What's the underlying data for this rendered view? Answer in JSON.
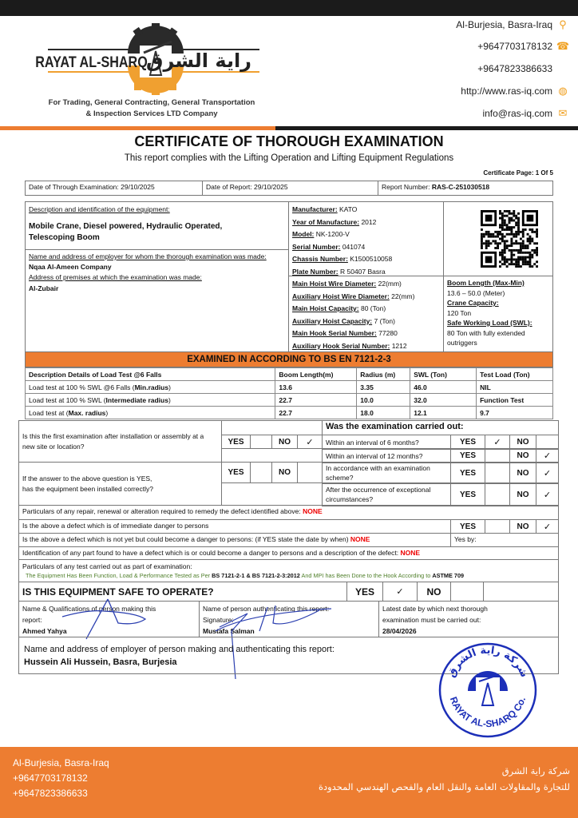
{
  "header": {
    "logo_text": "RAYAT AL-SHARQ",
    "logo_arabic": "راية الشرق",
    "tagline_1": "For Trading, General Contracting, General Transportation",
    "tagline_2": "& Inspection Services LTD Company",
    "contacts": [
      {
        "text": "Al-Burjesia, Basra-Iraq",
        "icon": "location-pin-icon"
      },
      {
        "text": "+9647703178132",
        "icon": "phone-icon"
      },
      {
        "text": "+9647823386633",
        "icon": ""
      },
      {
        "text": "http://www.ras-iq.com",
        "icon": "globe-icon"
      },
      {
        "text": "info@ras-iq.com",
        "icon": "envelope-icon"
      }
    ],
    "accent_color": "#ED7D31"
  },
  "title": "CERTIFICATE OF THOROUGH EXAMINATION",
  "subtitle": "This report complies with the Lifting Operation and Lifting Equipment Regulations",
  "page_label": "Certificate Page: 1 Of 5",
  "info_row": {
    "exam_date": "Date of Through Examination: 29/10/2025",
    "report_date": "Date of Report: 29/10/2025",
    "report_number_label": "Report Number: ",
    "report_number": "RAS-C-251030518"
  },
  "equipment": {
    "desc_label": "Description and identification of the equipment:",
    "desc_value_1": "Mobile Crane, Diesel powered, Hydraulic Operated,",
    "desc_value_2": "Telescoping Boom",
    "employer_label": "Name and address of employer for whom the thorough examination was made:",
    "employer_value": "Nqaa Al-Ameen Company",
    "premises_label": "Address of premises at which the examination was made:",
    "premises_value": "Al-Zubair",
    "specs": [
      {
        "label": "Manufacturer:",
        "value": " KATO"
      },
      {
        "label": "Year of Manufacture:",
        "value": " 2012"
      },
      {
        "label": "Model:",
        "value": " NK-1200-V"
      },
      {
        "label": "Serial Number:",
        "value": " 041074"
      },
      {
        "label": "Chassis Number:",
        "value": " K1500510058"
      },
      {
        "label": "Plate Number:",
        "value": " R 50407 Basra"
      }
    ],
    "hoist": [
      {
        "label": "Main Hoist Wire Diameter:",
        "value": " 22(mm)"
      },
      {
        "label": "Auxiliary Hoist Wire Diameter:",
        "value": " 22(mm)"
      },
      {
        "label": "Main Hoist Capacity:",
        "value": " 80 (Ton)"
      },
      {
        "label": "Auxiliary Hoist Capacity:",
        "value": " 7 (Ton)"
      },
      {
        "label": "Main Hook Serial Number:",
        "value": " 77280"
      },
      {
        "label": "Auxiliary Hook Serial Number:",
        "value": " 1212"
      }
    ],
    "boom_label": "Boom Length (Max-Min)",
    "boom_value": "13.6 – 50.0 (Meter)",
    "crane_cap_label": "Crane Capacity:",
    "crane_cap_value": "120 Ton",
    "swl_label": "Safe Working Load (SWL):",
    "swl_value": "80 Ton with fully extended outriggers"
  },
  "standard_banner": "EXAMINED IN ACCORDING TO BS EN 7121-2-3",
  "load_test": {
    "headers": [
      "Description Details of Load Test @6 Falls",
      "Boom Length(m)",
      "Radius (m)",
      "SWL (Ton)",
      "Test Load (Ton)"
    ],
    "rows": [
      {
        "desc": "Load test at 100 % SWL @6 Falls (",
        "desc_bold": "Min.radius",
        "boom": "13.6",
        "radius": "3.35",
        "swl": "46.0",
        "test": "NIL"
      },
      {
        "desc": "Load test at 100 % SWL (",
        "desc_bold": "Intermediate radius",
        "boom": "22.7",
        "radius": "10.0",
        "swl": "32.0",
        "test": "Function Test"
      },
      {
        "desc": "Load test at (",
        "desc_bold": "Max. radius",
        "boom": "22.7",
        "radius": "18.0",
        "swl": "12.1",
        "test": "9.7"
      }
    ]
  },
  "questions": {
    "yes": "YES",
    "no": "NO",
    "check": "✓",
    "q1": "Is this the first examination after installation or assembly at a new site or location?",
    "q2a": "If the answer to the above question is YES,",
    "q2b": "has the equipment been installed correctly?",
    "carried_out_label": "Was the examination carried out:",
    "carried_out": [
      {
        "text": "Within an interval of 6 months?",
        "answer": "YES"
      },
      {
        "text": "Within an interval of 12 months?",
        "answer": "NO"
      },
      {
        "text": "In accordance with an examination scheme?",
        "answer": "NO"
      },
      {
        "text": "After the occurrence of exceptional circumstances?",
        "answer": "NO"
      }
    ],
    "q1_answer": "NO"
  },
  "particulars": {
    "repair": "Particulars of any repair, renewal or alteration required to remedy the defect identified above: ",
    "repair_value": "NONE",
    "immediate": "Is the above a defect which is of immediate danger to persons",
    "immediate_answer": "NO",
    "not_yet": "Is the above a defect which is not yet but could become a danger to persons: (if YES state the date by when) ",
    "not_yet_value": "NONE",
    "yes_by": "Yes by:",
    "identification": "Identification of any part found to have a defect which is or could become a danger to persons and a description of the defect: ",
    "identification_value": "NONE",
    "test_label": "Particulars of any test carried out as part of examination:",
    "test_1": "The Equipment Has Been Function, Load & Performance Tested as Per ",
    "test_2": "BS 7121-2-1 & BS 7121-2-3:2012",
    "test_3": " And MPI has Been Done to the Hook According to ",
    "test_4": "ASTME 709"
  },
  "safe": {
    "question": "IS THIS EQUIPMENT SAFE TO OPERATE?",
    "answer": "YES"
  },
  "signatures": {
    "maker_label": "Name & Qualifications of person making this report:",
    "maker_name": "Ahmed Yahya",
    "auth_label": "Name of person authenticating this report:",
    "auth_sig_label": "Signature:",
    "auth_name": "Mustafa Salman",
    "next_label": "Latest date by which next thorough examination must be carried out:",
    "next_date": "28/04/2026"
  },
  "employer_of_person": {
    "label": "Name and address of employer of person making and authenticating this report:",
    "value": "Hussein Ali Hussein, Basra, Burjesia"
  },
  "stamp": {
    "arabic": "شركة راية الشرق",
    "english": "RAYAT AL-SHARQ Co."
  },
  "footer": {
    "address": "Al-Burjesia, Basra-Iraq",
    "phone_1": "+9647703178132",
    "phone_2": "+9647823386633",
    "arabic_1": "شركة راية الشرق",
    "arabic_2": "للتجارة والمقاولات العامة والنقل العام والفحص الهندسي المحدودة"
  }
}
